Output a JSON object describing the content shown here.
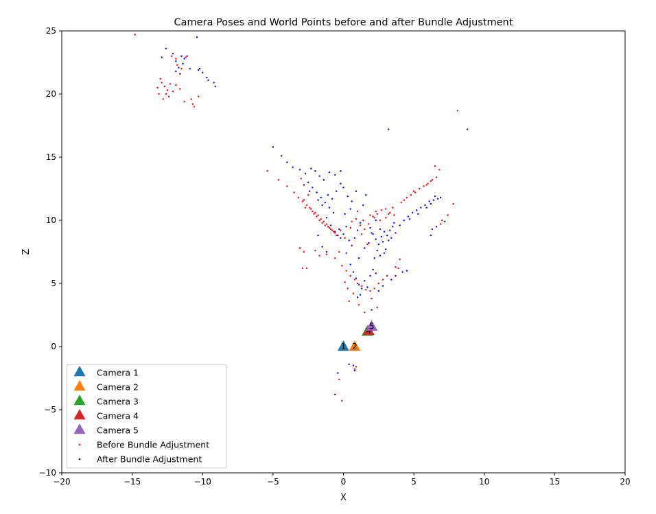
{
  "chart_data": {
    "type": "scatter",
    "title": "Camera Poses and World Points before and after Bundle Adjustment",
    "xlabel": "X",
    "ylabel": "Z",
    "xlim": [
      -20,
      20
    ],
    "ylim": [
      -10,
      25
    ],
    "xticks": [
      -20,
      -15,
      -10,
      -5,
      0,
      5,
      10,
      15,
      20
    ],
    "yticks": [
      -10,
      -5,
      0,
      5,
      10,
      15,
      20,
      25
    ],
    "xtick_labels": [
      "−20",
      "−15",
      "−10",
      "−5",
      "0",
      "5",
      "10",
      "15",
      "20"
    ],
    "ytick_labels": [
      "−10",
      "−5",
      "0",
      "5",
      "10",
      "15",
      "20",
      "25"
    ],
    "grid": false,
    "legend_position": "lower-left",
    "cameras": [
      {
        "name": "Camera 1",
        "label": "1",
        "x": 0.0,
        "z": 0.0,
        "color": "#1f77b4"
      },
      {
        "name": "Camera 2",
        "label": "2",
        "x": 0.8,
        "z": 0.0,
        "color": "#ff7f0e"
      },
      {
        "name": "Camera 3",
        "label": "3",
        "x": 1.7,
        "z": 1.2,
        "color": "#2ca02c"
      },
      {
        "name": "Camera 4",
        "label": "4",
        "x": 1.8,
        "z": 1.25,
        "color": "#d62728"
      },
      {
        "name": "Camera 5",
        "label": "5",
        "x": 2.0,
        "z": 1.6,
        "color": "#9467bd"
      }
    ],
    "series": [
      {
        "name": "Before Bundle Adjustment",
        "color": "#ff0000",
        "points": [
          [
            -14.8,
            24.7
          ],
          [
            -12.2,
            23.0
          ],
          [
            -11.9,
            22.8
          ],
          [
            -11.8,
            22.3
          ],
          [
            -11.5,
            22.0
          ],
          [
            -11.2,
            22.9
          ],
          [
            -13.0,
            21.2
          ],
          [
            -12.7,
            20.6
          ],
          [
            -12.5,
            20.3
          ],
          [
            -12.3,
            20.8
          ],
          [
            -12.1,
            20.2
          ],
          [
            -11.9,
            20.7
          ],
          [
            -13.1,
            20.0
          ],
          [
            -12.8,
            19.6
          ],
          [
            -12.4,
            19.8
          ],
          [
            -11.3,
            19.4
          ],
          [
            -10.8,
            19.6
          ],
          [
            -10.7,
            19.2
          ],
          [
            -10.6,
            19.0
          ],
          [
            -10.3,
            19.8
          ],
          [
            -13.2,
            20.5
          ],
          [
            -12.6,
            20.0
          ],
          [
            -11.6,
            20.4
          ],
          [
            -12.9,
            20.9
          ],
          [
            -5.4,
            13.9
          ],
          [
            -4.6,
            13.2
          ],
          [
            -4.0,
            12.7
          ],
          [
            -3.5,
            12.2
          ],
          [
            -3.2,
            11.8
          ],
          [
            -2.9,
            11.5
          ],
          [
            -2.6,
            11.2
          ],
          [
            -2.4,
            11.0
          ],
          [
            -2.2,
            10.7
          ],
          [
            -2.0,
            10.6
          ],
          [
            -1.8,
            10.4
          ],
          [
            -1.6,
            10.1
          ],
          [
            -1.4,
            9.9
          ],
          [
            -1.2,
            9.7
          ],
          [
            -1.0,
            9.4
          ],
          [
            -0.8,
            9.2
          ],
          [
            -0.6,
            9.0
          ],
          [
            -0.5,
            8.8
          ],
          [
            -2.7,
            11.0
          ],
          [
            -2.3,
            10.9
          ],
          [
            -1.9,
            10.3
          ],
          [
            -1.5,
            9.8
          ],
          [
            -1.1,
            9.5
          ],
          [
            -0.9,
            9.3
          ],
          [
            -2.8,
            11.6
          ],
          [
            -2.1,
            10.5
          ],
          [
            -1.7,
            10.0
          ],
          [
            -1.3,
            9.6
          ],
          [
            -0.7,
            9.1
          ],
          [
            -3.0,
            13.3
          ],
          [
            -2.5,
            12.0
          ],
          [
            -3.1,
            7.8
          ],
          [
            -2.8,
            7.5
          ],
          [
            -2.0,
            7.6
          ],
          [
            -1.7,
            7.2
          ],
          [
            -2.9,
            6.2
          ],
          [
            -2.6,
            6.2
          ],
          [
            -1.2,
            7.3
          ],
          [
            -0.6,
            7.0
          ],
          [
            -0.3,
            7.5
          ],
          [
            -0.1,
            6.4
          ],
          [
            0.2,
            6.0
          ],
          [
            0.5,
            5.6
          ],
          [
            0.8,
            5.3
          ],
          [
            1.0,
            5.0
          ],
          [
            1.3,
            4.8
          ],
          [
            1.6,
            4.5
          ],
          [
            1.9,
            4.4
          ],
          [
            2.2,
            4.6
          ],
          [
            2.5,
            5.0
          ],
          [
            2.8,
            5.3
          ],
          [
            3.1,
            5.6
          ],
          [
            0.1,
            5.1
          ],
          [
            0.4,
            3.6
          ],
          [
            0.7,
            4.2
          ],
          [
            1.1,
            3.3
          ],
          [
            1.5,
            2.7
          ],
          [
            2.0,
            3.8
          ],
          [
            2.4,
            3.1
          ],
          [
            0.3,
            4.6
          ],
          [
            0.6,
            9.9
          ],
          [
            0.9,
            10.1
          ],
          [
            1.2,
            9.6
          ],
          [
            1.5,
            9.3
          ],
          [
            1.8,
            9.7
          ],
          [
            2.1,
            10.3
          ],
          [
            2.4,
            10.5
          ],
          [
            2.7,
            10.8
          ],
          [
            3.0,
            10.9
          ],
          [
            3.3,
            10.6
          ],
          [
            3.6,
            10.4
          ],
          [
            3.0,
            10.2
          ],
          [
            2.6,
            10.0
          ],
          [
            2.2,
            10.2
          ],
          [
            1.9,
            10.4
          ],
          [
            1.4,
            10.0
          ],
          [
            3.5,
            11.0
          ],
          [
            4.1,
            11.4
          ],
          [
            4.5,
            11.8
          ],
          [
            4.8,
            12.0
          ],
          [
            5.1,
            12.2
          ],
          [
            5.4,
            12.5
          ],
          [
            5.7,
            12.7
          ],
          [
            6.0,
            12.9
          ],
          [
            6.3,
            13.2
          ],
          [
            6.6,
            13.4
          ],
          [
            6.8,
            14.0
          ],
          [
            6.5,
            14.3
          ],
          [
            4.3,
            11.6
          ],
          [
            5.0,
            12.3
          ],
          [
            5.9,
            12.8
          ],
          [
            6.2,
            13.1
          ],
          [
            7.0,
            10.0
          ],
          [
            7.4,
            10.4
          ],
          [
            7.8,
            11.3
          ],
          [
            6.9,
            9.7
          ],
          [
            8.1,
            18.7
          ],
          [
            4.0,
            6.9
          ],
          [
            3.7,
            6.3
          ],
          [
            3.9,
            6.2
          ],
          [
            0.8,
            -1.8
          ],
          [
            0.9,
            -1.6
          ],
          [
            -0.3,
            -2.6
          ],
          [
            -0.1,
            -4.3
          ],
          [
            1.7,
            8.1
          ],
          [
            1.3,
            8.9
          ],
          [
            -0.2,
            9.2
          ],
          [
            0.1,
            8.6
          ],
          [
            2.3,
            10.7
          ],
          [
            3.2,
            10.5
          ],
          [
            1.0,
            10.7
          ],
          [
            0.5,
            9.4
          ]
        ]
      },
      {
        "name": "After Bundle Adjustment",
        "color": "#0000ff",
        "points": [
          [
            -12.6,
            23.6
          ],
          [
            -12.1,
            23.2
          ],
          [
            -11.9,
            22.6
          ],
          [
            -11.7,
            22.1
          ],
          [
            -11.4,
            22.4
          ],
          [
            -11.1,
            23.0
          ],
          [
            -11.9,
            21.8
          ],
          [
            -11.6,
            21.6
          ],
          [
            -11.3,
            22.8
          ],
          [
            -10.9,
            22.0
          ],
          [
            -10.4,
            24.5
          ],
          [
            -10.2,
            22.0
          ],
          [
            -10.0,
            21.7
          ],
          [
            -9.7,
            21.3
          ],
          [
            -9.6,
            21.1
          ],
          [
            -9.2,
            20.9
          ],
          [
            -9.1,
            20.6
          ],
          [
            -12.9,
            22.9
          ],
          [
            -11.5,
            23.0
          ],
          [
            -10.3,
            21.9
          ],
          [
            -5.0,
            15.8
          ],
          [
            -4.4,
            15.1
          ],
          [
            -4.0,
            14.6
          ],
          [
            -3.6,
            14.2
          ],
          [
            -3.1,
            14.0
          ],
          [
            -2.7,
            13.7
          ],
          [
            -2.3,
            14.1
          ],
          [
            -2.0,
            13.9
          ],
          [
            -1.7,
            13.5
          ],
          [
            -1.4,
            13.2
          ],
          [
            -1.0,
            13.8
          ],
          [
            -0.6,
            13.6
          ],
          [
            -0.2,
            13.9
          ],
          [
            -2.5,
            13.0
          ],
          [
            -2.2,
            12.6
          ],
          [
            -1.9,
            12.2
          ],
          [
            -1.6,
            11.8
          ],
          [
            -1.3,
            11.4
          ],
          [
            -1.0,
            11.0
          ],
          [
            -0.7,
            10.6
          ],
          [
            -2.8,
            12.8
          ],
          [
            -2.4,
            12.3
          ],
          [
            -1.8,
            11.6
          ],
          [
            -1.5,
            11.2
          ],
          [
            -1.1,
            12.0
          ],
          [
            -0.8,
            11.7
          ],
          [
            -0.5,
            12.3
          ],
          [
            0.0,
            12.6
          ],
          [
            0.3,
            11.9
          ],
          [
            0.6,
            11.5
          ],
          [
            -1.2,
            10.2
          ],
          [
            -0.9,
            9.6
          ],
          [
            -0.6,
            9.1
          ],
          [
            -0.4,
            8.8
          ],
          [
            -0.2,
            8.6
          ],
          [
            0.0,
            8.9
          ],
          [
            -0.3,
            9.3
          ],
          [
            0.2,
            9.5
          ],
          [
            0.4,
            8.4
          ],
          [
            0.6,
            8.0
          ],
          [
            0.8,
            8.6
          ],
          [
            1.0,
            9.2
          ],
          [
            1.2,
            9.8
          ],
          [
            1.4,
            11.2
          ],
          [
            1.6,
            12.0
          ],
          [
            0.9,
            12.3
          ],
          [
            1.9,
            9.4
          ],
          [
            2.1,
            8.9
          ],
          [
            2.3,
            8.5
          ],
          [
            2.5,
            8.1
          ],
          [
            2.7,
            8.7
          ],
          [
            2.9,
            9.1
          ],
          [
            3.1,
            8.8
          ],
          [
            3.3,
            9.2
          ],
          [
            3.5,
            9.5
          ],
          [
            3.7,
            9.0
          ],
          [
            2.6,
            9.3
          ],
          [
            2.8,
            8.3
          ],
          [
            3.0,
            7.7
          ],
          [
            3.2,
            8.4
          ],
          [
            2.4,
            7.6
          ],
          [
            2.2,
            7.0
          ],
          [
            2.6,
            7.2
          ],
          [
            2.9,
            7.4
          ],
          [
            3.4,
            8.6
          ],
          [
            3.6,
            9.8
          ],
          [
            2.0,
            9.0
          ],
          [
            1.8,
            8.2
          ],
          [
            4.0,
            9.6
          ],
          [
            4.3,
            10.0
          ],
          [
            4.6,
            10.3
          ],
          [
            4.9,
            10.6
          ],
          [
            5.2,
            10.8
          ],
          [
            5.5,
            11.0
          ],
          [
            5.8,
            11.2
          ],
          [
            6.1,
            11.5
          ],
          [
            6.4,
            11.6
          ],
          [
            6.7,
            11.7
          ],
          [
            6.9,
            11.8
          ],
          [
            4.7,
            10.1
          ],
          [
            5.3,
            10.5
          ],
          [
            5.9,
            11.0
          ],
          [
            6.2,
            11.3
          ],
          [
            6.5,
            11.9
          ],
          [
            6.3,
            9.3
          ],
          [
            6.6,
            9.5
          ],
          [
            6.2,
            8.8
          ],
          [
            3.2,
            17.2
          ],
          [
            8.8,
            17.2
          ],
          [
            7.2,
            9.9
          ],
          [
            0.5,
            6.5
          ],
          [
            0.7,
            5.9
          ],
          [
            0.9,
            5.4
          ],
          [
            1.1,
            4.9
          ],
          [
            1.3,
            4.6
          ],
          [
            1.5,
            5.2
          ],
          [
            1.7,
            4.7
          ],
          [
            1.9,
            5.6
          ],
          [
            2.1,
            6.1
          ],
          [
            2.3,
            5.8
          ],
          [
            2.5,
            4.4
          ],
          [
            2.8,
            4.8
          ],
          [
            3.4,
            5.3
          ],
          [
            3.7,
            5.6
          ],
          [
            4.2,
            5.9
          ],
          [
            4.5,
            6.0
          ],
          [
            1.2,
            4.1
          ],
          [
            1.0,
            3.9
          ],
          [
            2.0,
            2.9
          ],
          [
            0.4,
            -1.4
          ],
          [
            0.7,
            -1.5
          ],
          [
            0.8,
            -1.9
          ],
          [
            -0.6,
            -3.8
          ],
          [
            -0.4,
            -2.1
          ],
          [
            0.2,
            7.4
          ],
          [
            1.1,
            7.0
          ],
          [
            1.5,
            7.8
          ],
          [
            -1.8,
            8.8
          ],
          [
            -1.5,
            7.9
          ],
          [
            -1.2,
            7.5
          ],
          [
            0.1,
            10.5
          ],
          [
            0.5,
            10.9
          ],
          [
            -0.2,
            12.9
          ],
          [
            2.3,
            10.0
          ]
        ]
      }
    ]
  }
}
